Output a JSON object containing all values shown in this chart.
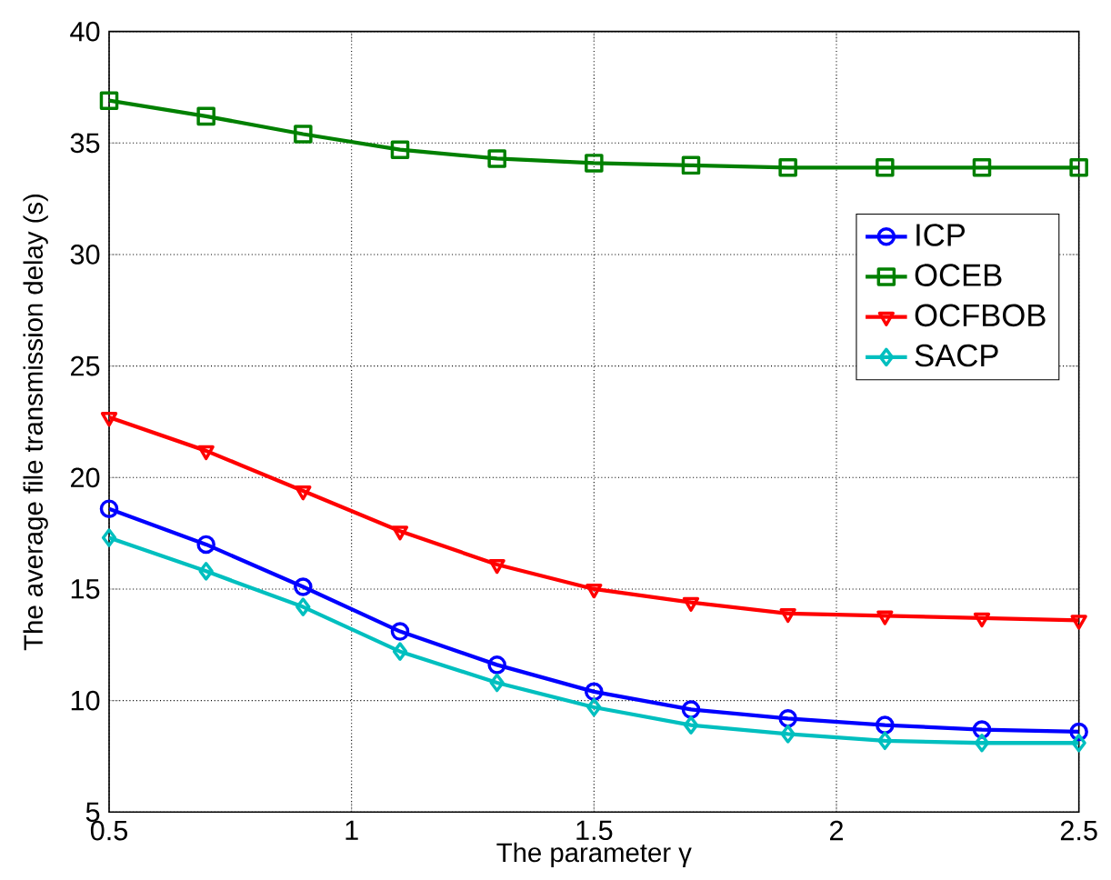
{
  "chart_data": {
    "type": "line",
    "xlabel": "The parameter γ",
    "ylabel": "The average file transmission delay (s)",
    "x": [
      0.5,
      0.7,
      0.9,
      1.1,
      1.3,
      1.5,
      1.7,
      1.9,
      2.1,
      2.3,
      2.5
    ],
    "series": [
      {
        "name": "ICP",
        "color": "#0000ff",
        "marker": "circle",
        "values": [
          18.6,
          17.0,
          15.1,
          13.1,
          11.6,
          10.4,
          9.6,
          9.2,
          8.9,
          8.7,
          8.6
        ]
      },
      {
        "name": "OCEB",
        "color": "#008000",
        "marker": "square",
        "values": [
          36.9,
          36.2,
          35.4,
          34.7,
          34.3,
          34.1,
          34.0,
          33.9,
          33.9,
          33.9,
          33.9
        ]
      },
      {
        "name": "OCFBOB",
        "color": "#ff0000",
        "marker": "triangle",
        "values": [
          22.7,
          21.2,
          19.4,
          17.6,
          16.1,
          15.0,
          14.4,
          13.9,
          13.8,
          13.7,
          13.6
        ]
      },
      {
        "name": "SACP",
        "color": "#00bfbf",
        "marker": "diamond",
        "values": [
          17.3,
          15.8,
          14.2,
          12.2,
          10.8,
          9.7,
          8.9,
          8.5,
          8.2,
          8.1,
          8.1
        ]
      }
    ],
    "xlim": [
      0.5,
      2.5
    ],
    "ylim": [
      5,
      40
    ],
    "xticks": [
      0.5,
      1,
      1.5,
      2,
      2.5
    ],
    "yticks": [
      5,
      10,
      15,
      20,
      25,
      30,
      35,
      40
    ],
    "grid": true,
    "legend": "right",
    "line_style": "solid"
  }
}
